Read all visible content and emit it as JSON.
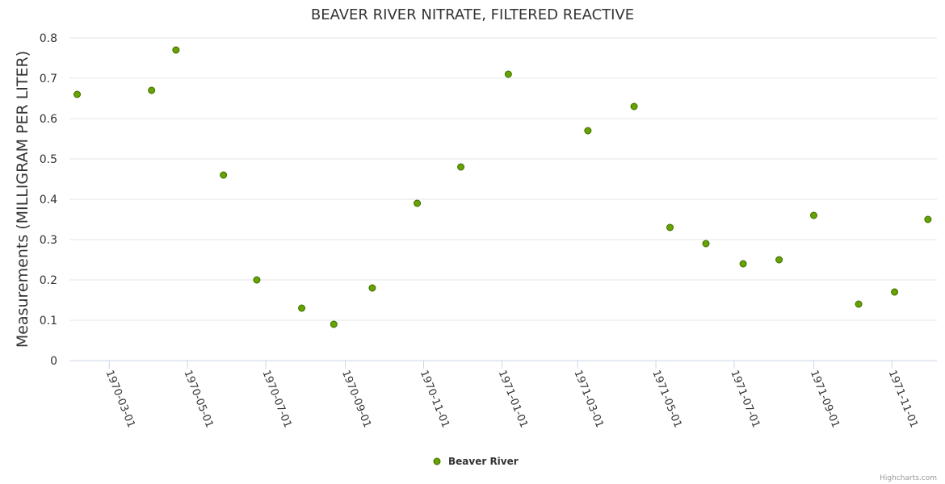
{
  "chart_data": {
    "type": "scatter",
    "title": "BEAVER RIVER NITRATE, FILTERED REACTIVE",
    "xlabel": "",
    "ylabel": "Measurements (MILLIGRAM PER LITER)",
    "ylim": [
      0,
      0.8
    ],
    "xlim": [
      "1970-01-29",
      "1971-12-06"
    ],
    "yticks": [
      "0",
      "0.1",
      "0.2",
      "0.3",
      "0.4",
      "0.5",
      "0.6",
      "0.7",
      "0.8"
    ],
    "xticks": [
      "1970-03-01",
      "1970-05-01",
      "1970-07-01",
      "1970-09-01",
      "1970-11-01",
      "1971-01-01",
      "1971-03-01",
      "1971-05-01",
      "1971-07-01",
      "1971-09-01",
      "1971-11-01"
    ],
    "grid": true,
    "legend_position": "bottom-center",
    "series": [
      {
        "name": "Beaver River",
        "color": "#66a300",
        "x": [
          "1970-02-04",
          "1970-04-03",
          "1970-04-22",
          "1970-05-29",
          "1970-06-24",
          "1970-07-29",
          "1970-08-23",
          "1970-09-22",
          "1970-10-27",
          "1970-11-30",
          "1971-01-06",
          "1971-03-09",
          "1971-04-14",
          "1971-05-12",
          "1971-06-09",
          "1971-07-08",
          "1971-08-05",
          "1971-09-01",
          "1971-10-06",
          "1971-11-03",
          "1971-11-29"
        ],
        "y": [
          0.66,
          0.67,
          0.77,
          0.46,
          0.2,
          0.13,
          0.09,
          0.18,
          0.39,
          0.48,
          0.71,
          0.57,
          0.63,
          0.33,
          0.29,
          0.24,
          0.25,
          0.36,
          0.14,
          0.17,
          0.35
        ]
      }
    ]
  },
  "credits": "Highcharts.com"
}
